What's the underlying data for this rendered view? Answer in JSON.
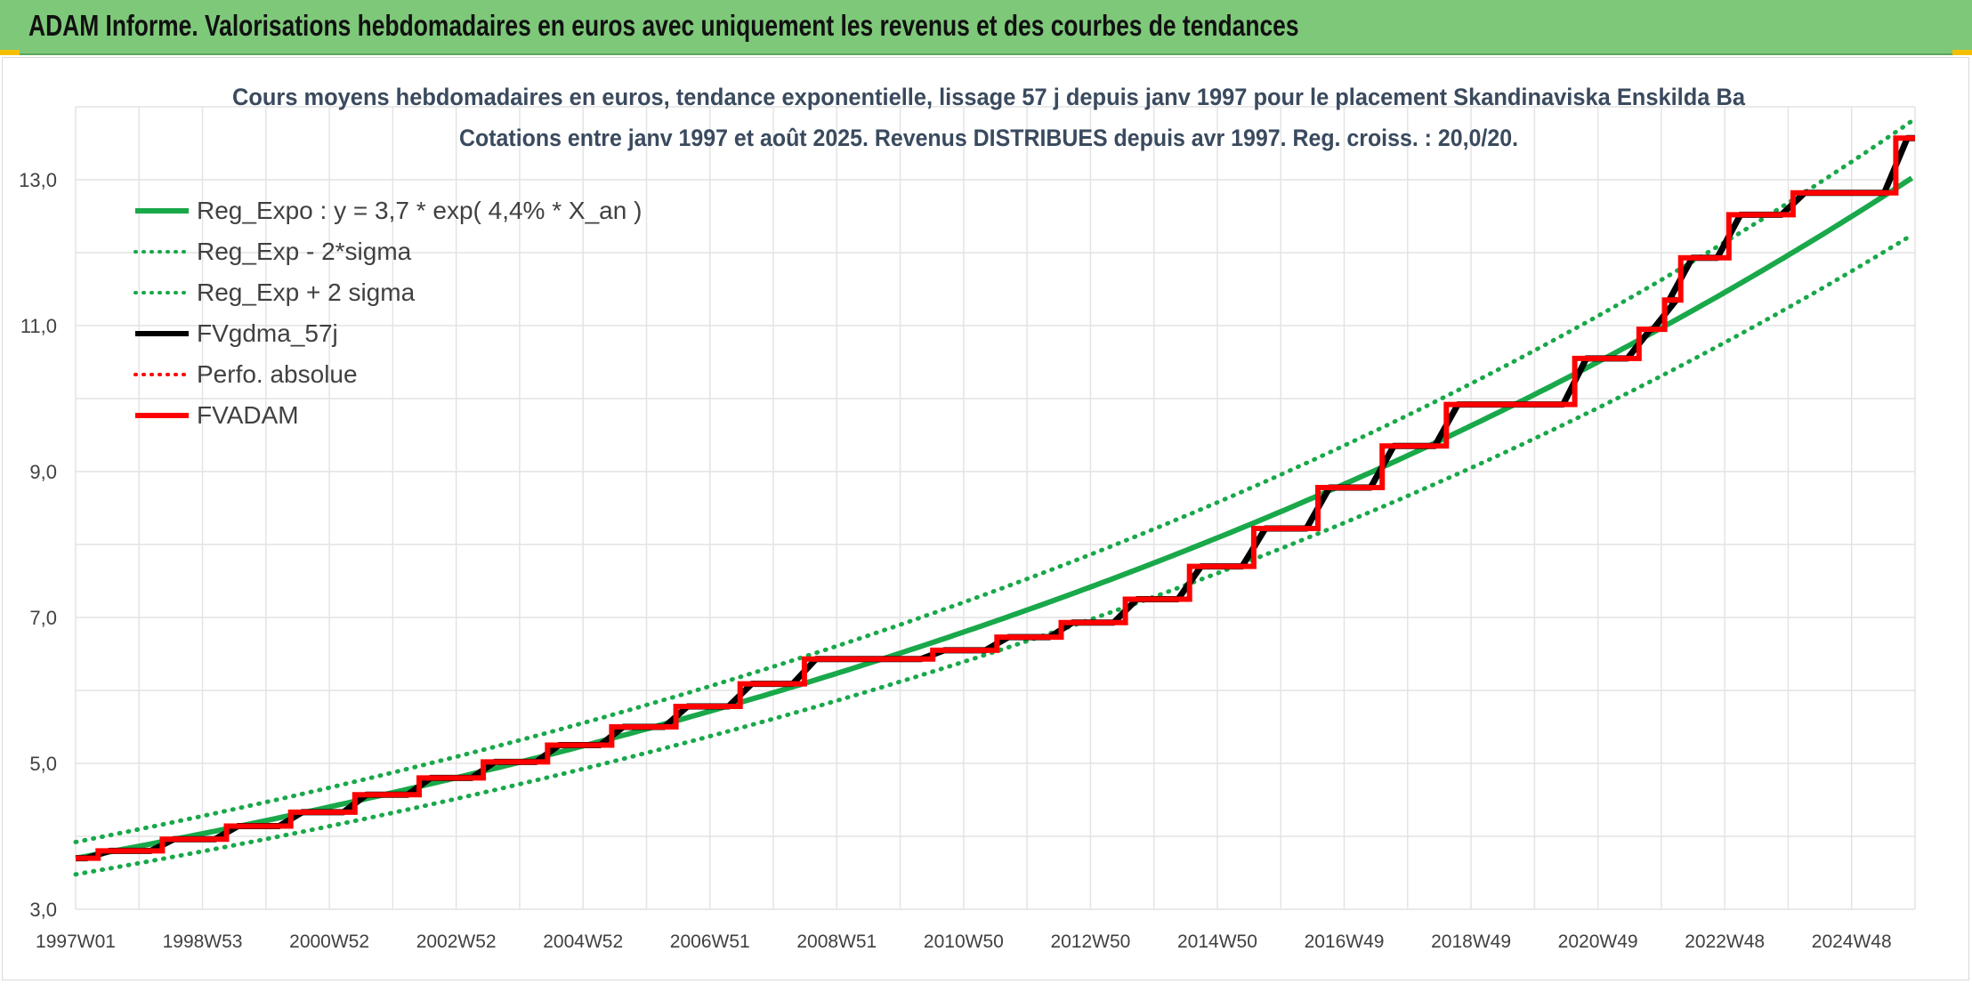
{
  "header": {
    "title": "ADAM Informe. Valorisations hebdomadaires en euros avec uniquement les revenus et des courbes de tendances"
  },
  "chart_data": {
    "type": "line",
    "title_line1": "Cours moyens hebdomadaires en euros, tendance exponentielle, lissage 57 j depuis janv 1997 pour le placement Skandinaviska Enskilda Ba",
    "title_line2": "Cotations entre janv 1997 et août 2025. Revenus DISTRIBUES depuis avr 1997. Reg. croiss. : 20,0/20.",
    "x_tick_labels": [
      "1997W01",
      "1998W53",
      "2000W52",
      "2002W52",
      "2004W52",
      "2006W51",
      "2008W51",
      "2010W50",
      "2012W50",
      "2014W50",
      "2016W49",
      "2018W49",
      "2020W49",
      "2022W48",
      "2024W48"
    ],
    "y_tick_labels": [
      "3,0",
      "5,0",
      "7,0",
      "9,0",
      "11,0",
      "13,0"
    ],
    "xlim": [
      1997.0,
      2025.65
    ],
    "ylim": [
      3.0,
      14.0
    ],
    "grid": true,
    "legend_position": "top-left",
    "legend": [
      {
        "label": "Reg_Expo : y = 3,7 * exp( 4,4% *  X_an )",
        "color": "#19a84a",
        "style": "solid"
      },
      {
        "label": "Reg_Exp - 2*sigma",
        "color": "#19a84a",
        "style": "dotted"
      },
      {
        "label": "Reg_Exp + 2 sigma",
        "color": "#19a84a",
        "style": "dotted"
      },
      {
        "label": "FVgdma_57j",
        "color": "#000000",
        "style": "solid"
      },
      {
        "label": "Perfo. absolue",
        "color": "#ff0000",
        "style": "dotted"
      },
      {
        "label": "FVADAM",
        "color": "#ff0000",
        "style": "solid"
      }
    ],
    "regression": {
      "a": 3.7,
      "rate": 0.044,
      "upper_factor": 1.06,
      "lower_factor": 0.94
    },
    "series_fvadam": {
      "name": "FVADAM",
      "start": [
        1997.0,
        3.7
      ],
      "steps": [
        {
          "x": 1997.35,
          "y": 3.8
        },
        {
          "x": 1998.35,
          "y": 3.96
        },
        {
          "x": 1999.35,
          "y": 4.14
        },
        {
          "x": 2000.35,
          "y": 4.33
        },
        {
          "x": 2001.35,
          "y": 4.57
        },
        {
          "x": 2002.35,
          "y": 4.8
        },
        {
          "x": 2003.35,
          "y": 5.02
        },
        {
          "x": 2004.35,
          "y": 5.25
        },
        {
          "x": 2005.35,
          "y": 5.5
        },
        {
          "x": 2006.35,
          "y": 5.78
        },
        {
          "x": 2007.35,
          "y": 6.09
        },
        {
          "x": 2008.35,
          "y": 6.43
        },
        {
          "x": 2010.35,
          "y": 6.55
        },
        {
          "x": 2011.35,
          "y": 6.73
        },
        {
          "x": 2012.35,
          "y": 6.93
        },
        {
          "x": 2013.35,
          "y": 7.25
        },
        {
          "x": 2014.35,
          "y": 7.7
        },
        {
          "x": 2015.35,
          "y": 8.22
        },
        {
          "x": 2016.35,
          "y": 8.78
        },
        {
          "x": 2017.35,
          "y": 9.35
        },
        {
          "x": 2018.35,
          "y": 9.92
        },
        {
          "x": 2020.35,
          "y": 10.55
        },
        {
          "x": 2021.35,
          "y": 10.95
        },
        {
          "x": 2021.75,
          "y": 11.35
        },
        {
          "x": 2022.0,
          "y": 11.93
        },
        {
          "x": 2022.75,
          "y": 12.52
        },
        {
          "x": 2023.75,
          "y": 12.82
        },
        {
          "x": 2025.35,
          "y": 13.57
        }
      ],
      "end_x": 2025.65
    }
  }
}
